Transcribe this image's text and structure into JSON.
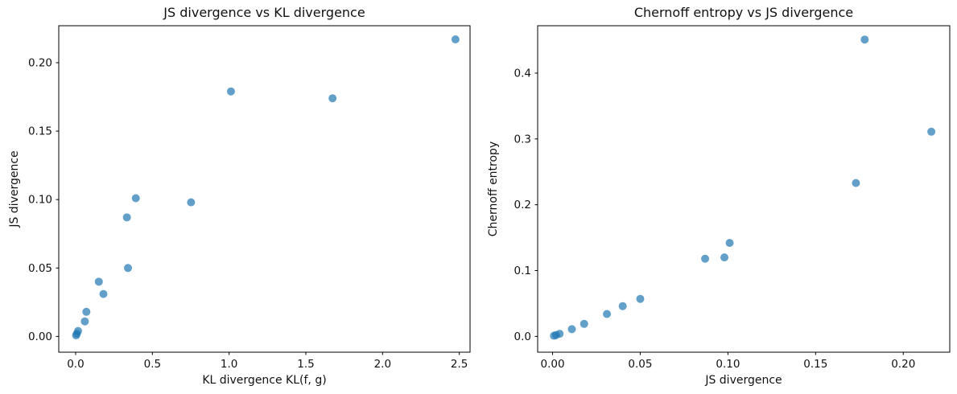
{
  "figure": {
    "background": "#ffffff",
    "text_color": "#111111"
  },
  "chart_data": [
    {
      "type": "scatter",
      "title": "JS divergence vs KL divergence",
      "xlabel": "KL divergence KL(f, g)",
      "ylabel": "JS divergence",
      "xlim": [
        -0.11,
        2.57
      ],
      "ylim": [
        -0.0115,
        0.227
      ],
      "xtick_values": [
        0.0,
        0.5,
        1.0,
        1.5,
        2.0,
        2.5
      ],
      "xtick_labels": [
        "0.0",
        "0.5",
        "1.0",
        "1.5",
        "2.0",
        "2.5"
      ],
      "ytick_values": [
        0.0,
        0.05,
        0.1,
        0.15,
        0.2
      ],
      "ytick_labels": [
        "0.00",
        "0.05",
        "0.10",
        "0.15",
        "0.20"
      ],
      "grid": false,
      "legend": "none",
      "marker_color": "#1f77b4",
      "marker_alpha": 0.7,
      "marker_radius": 5,
      "points": [
        [
          0.003,
          0.0008
        ],
        [
          0.008,
          0.002
        ],
        [
          0.016,
          0.004
        ],
        [
          0.06,
          0.011
        ],
        [
          0.07,
          0.018
        ],
        [
          0.151,
          0.04
        ],
        [
          0.181,
          0.031
        ],
        [
          0.334,
          0.087
        ],
        [
          0.341,
          0.05
        ],
        [
          0.392,
          0.101
        ],
        [
          0.752,
          0.098
        ],
        [
          1.012,
          0.179
        ],
        [
          1.674,
          0.174
        ],
        [
          2.475,
          0.217
        ]
      ]
    },
    {
      "type": "scatter",
      "title": "Chernoff entropy vs JS divergence",
      "xlabel": "JS divergence",
      "ylabel": "Chernoff entropy",
      "xlim": [
        -0.0085,
        0.2265
      ],
      "ylim": [
        -0.024,
        0.472
      ],
      "xtick_values": [
        0.0,
        0.05,
        0.1,
        0.15,
        0.2
      ],
      "xtick_labels": [
        "0.00",
        "0.05",
        "0.10",
        "0.15",
        "0.20"
      ],
      "ytick_values": [
        0.0,
        0.1,
        0.2,
        0.3,
        0.4
      ],
      "ytick_labels": [
        "0.0",
        "0.1",
        "0.2",
        "0.3",
        "0.4"
      ],
      "grid": false,
      "legend": "none",
      "marker_color": "#1f77b4",
      "marker_alpha": 0.7,
      "marker_radius": 5,
      "points": [
        [
          0.0008,
          0.001
        ],
        [
          0.002,
          0.002
        ],
        [
          0.004,
          0.004
        ],
        [
          0.011,
          0.011
        ],
        [
          0.018,
          0.019
        ],
        [
          0.031,
          0.034
        ],
        [
          0.04,
          0.046
        ],
        [
          0.05,
          0.057
        ],
        [
          0.087,
          0.118
        ],
        [
          0.098,
          0.12
        ],
        [
          0.101,
          0.142
        ],
        [
          0.173,
          0.233
        ],
        [
          0.178,
          0.451
        ],
        [
          0.216,
          0.311
        ]
      ]
    }
  ]
}
